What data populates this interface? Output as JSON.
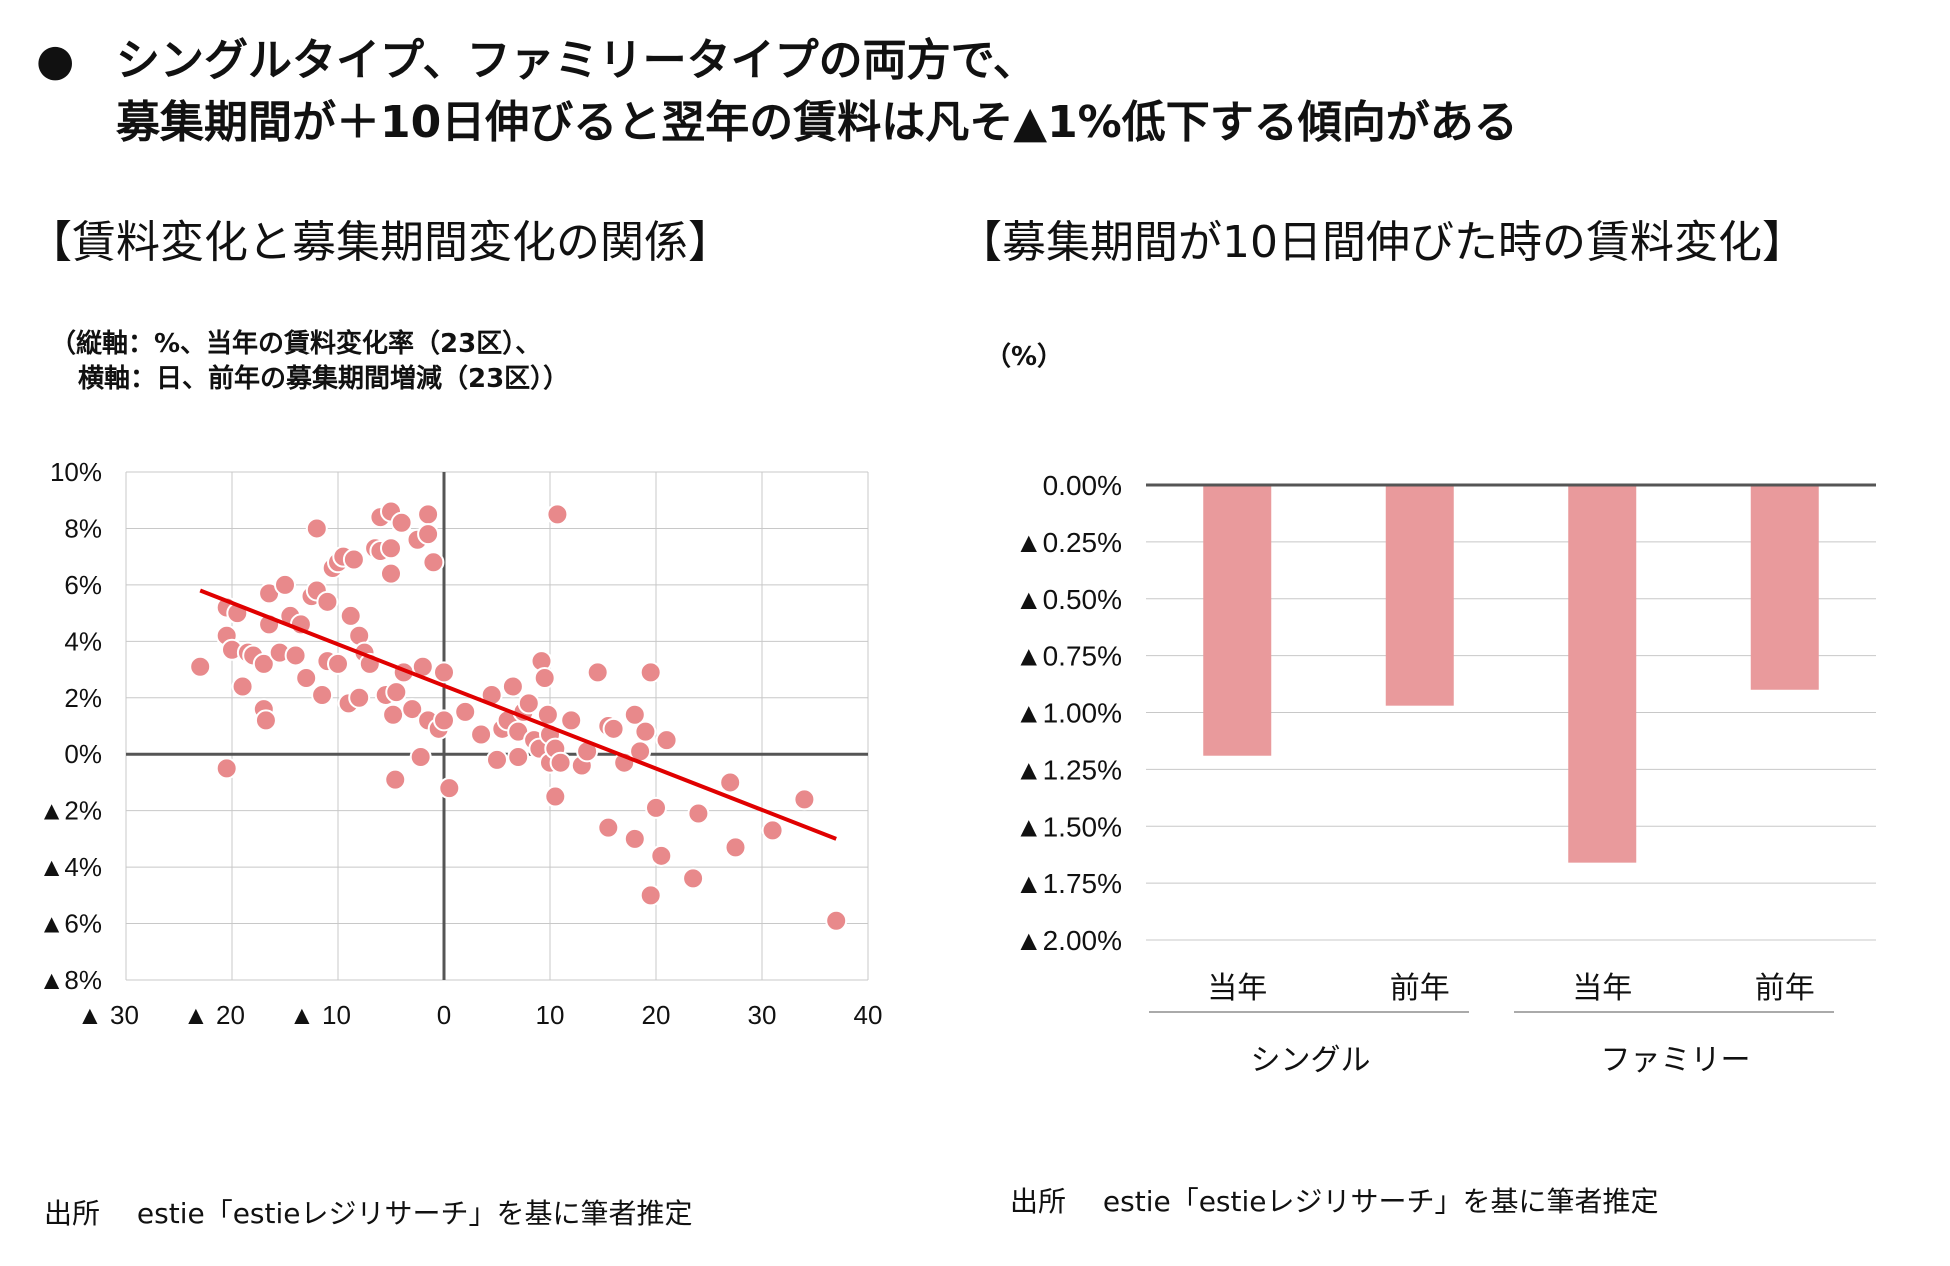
{
  "headline": {
    "bullet": "●",
    "line1": "シングルタイプ、ファミリータイプの両方で、",
    "line2": "募集期間が＋10日伸びると翌年の賃料は凡そ▲1%低下する傾向がある"
  },
  "left_panel": {
    "title": "【賃料変化と募集期間変化の関係】",
    "axis_note_1": "（縦軸：%、当年の賃料変化率（23区）、",
    "axis_note_2": "横軸：日、前年の募集期間増減（23区））",
    "source": "出所　 estie「estieレジリサーチ」を基に筆者推定"
  },
  "right_panel": {
    "title": "【募集期間が10日間伸びた時の賃料変化】",
    "unit": "（%）",
    "source": "出所　 estie「estieレジリサーチ」を基に筆者推定"
  },
  "colors": {
    "marker": "#E8898B",
    "trend": "#E00000",
    "bar": "#E99A9C",
    "axis": "#555555",
    "grid": "#C8C8C8"
  },
  "chart_data": [
    {
      "type": "scatter",
      "title": "賃料変化と募集期間変化の関係",
      "xlabel": "日、前年の募集期間増減（23区）",
      "ylabel": "%、当年の賃料変化率（23区）",
      "xlim": [
        -30,
        40
      ],
      "ylim": [
        -8,
        10
      ],
      "x_ticks": [
        -30,
        -20,
        -10,
        0,
        10,
        20,
        30,
        40
      ],
      "x_tick_labels": [
        "▲ 30",
        "▲ 20",
        "▲ 10",
        "0",
        "10",
        "20",
        "30",
        "40"
      ],
      "y_ticks": [
        10,
        8,
        6,
        4,
        2,
        0,
        -2,
        -4,
        -6,
        -8
      ],
      "y_tick_labels": [
        "10%",
        "8%",
        "6%",
        "4%",
        "2%",
        "0%",
        "▲2%",
        "▲4%",
        "▲6%",
        "▲8%"
      ],
      "trendline": {
        "x": [
          -23,
          37
        ],
        "y": [
          5.8,
          -3.0
        ]
      },
      "points": [
        [
          -23,
          3.1
        ],
        [
          -20.5,
          -0.5
        ],
        [
          -20.5,
          5.2
        ],
        [
          -20.5,
          4.2
        ],
        [
          -20,
          3.7
        ],
        [
          -19.5,
          5.0
        ],
        [
          -19,
          2.4
        ],
        [
          -18.5,
          3.6
        ],
        [
          -18,
          3.5
        ],
        [
          -17,
          3.2
        ],
        [
          -17,
          1.6
        ],
        [
          -16.8,
          1.2
        ],
        [
          -16.5,
          5.7
        ],
        [
          -16.5,
          4.6
        ],
        [
          -15.5,
          3.6
        ],
        [
          -15,
          6.0
        ],
        [
          -14.5,
          4.9
        ],
        [
          -14,
          3.5
        ],
        [
          -13.5,
          4.6
        ],
        [
          -13,
          2.7
        ],
        [
          -12.5,
          5.6
        ],
        [
          -12,
          8.0
        ],
        [
          -12,
          5.8
        ],
        [
          -11.5,
          2.1
        ],
        [
          -11,
          5.4
        ],
        [
          -11,
          3.3
        ],
        [
          -10.5,
          6.6
        ],
        [
          -10,
          6.8
        ],
        [
          -10,
          3.2
        ],
        [
          -9.5,
          7.0
        ],
        [
          -9,
          1.8
        ],
        [
          -8.8,
          4.9
        ],
        [
          -8.5,
          6.9
        ],
        [
          -8,
          4.2
        ],
        [
          -8,
          2.0
        ],
        [
          -7.5,
          3.6
        ],
        [
          -7,
          3.2
        ],
        [
          -6.5,
          7.3
        ],
        [
          -6,
          8.4
        ],
        [
          -6,
          7.2
        ],
        [
          -5.5,
          2.1
        ],
        [
          -5,
          8.6
        ],
        [
          -5,
          6.4
        ],
        [
          -5,
          7.3
        ],
        [
          -4.8,
          1.4
        ],
        [
          -4.6,
          -0.9
        ],
        [
          -4.5,
          2.2
        ],
        [
          -4,
          8.2
        ],
        [
          -3.8,
          2.9
        ],
        [
          -3,
          1.6
        ],
        [
          -2.5,
          7.6
        ],
        [
          -2.2,
          -0.1
        ],
        [
          -2,
          3.1
        ],
        [
          -1.5,
          1.2
        ],
        [
          -1.5,
          8.5
        ],
        [
          -1.5,
          7.8
        ],
        [
          -1,
          6.8
        ],
        [
          -0.5,
          0.9
        ],
        [
          0,
          1.2
        ],
        [
          0,
          2.9
        ],
        [
          0.5,
          -1.2
        ],
        [
          2,
          1.5
        ],
        [
          3.5,
          0.7
        ],
        [
          4.5,
          2.1
        ],
        [
          5,
          -0.2
        ],
        [
          5.5,
          0.9
        ],
        [
          6,
          1.2
        ],
        [
          6.5,
          2.4
        ],
        [
          7,
          -0.1
        ],
        [
          7,
          0.8
        ],
        [
          7.5,
          1.5
        ],
        [
          8,
          1.8
        ],
        [
          8.5,
          0.5
        ],
        [
          9,
          0.2
        ],
        [
          9.2,
          3.3
        ],
        [
          9.5,
          2.7
        ],
        [
          9.8,
          1.4
        ],
        [
          10,
          -0.3
        ],
        [
          10,
          0.7
        ],
        [
          10.5,
          0.2
        ],
        [
          10.5,
          -1.5
        ],
        [
          10.7,
          8.5
        ],
        [
          11,
          -0.3
        ],
        [
          12,
          1.2
        ],
        [
          13,
          -0.4
        ],
        [
          13.5,
          0.1
        ],
        [
          14.5,
          2.9
        ],
        [
          15.5,
          -2.6
        ],
        [
          15.5,
          1.0
        ],
        [
          16,
          0.9
        ],
        [
          17,
          -0.3
        ],
        [
          18,
          1.4
        ],
        [
          18,
          -3.0
        ],
        [
          18.5,
          0.1
        ],
        [
          19,
          0.8
        ],
        [
          19.5,
          2.9
        ],
        [
          19.5,
          -5.0
        ],
        [
          20,
          -1.9
        ],
        [
          20.5,
          -3.6
        ],
        [
          21,
          0.5
        ],
        [
          23.5,
          -4.4
        ],
        [
          24,
          -2.1
        ],
        [
          27,
          -1.0
        ],
        [
          27.5,
          -3.3
        ],
        [
          31,
          -2.7
        ],
        [
          34,
          -1.6
        ],
        [
          37,
          -5.9
        ]
      ]
    },
    {
      "type": "bar",
      "title": "募集期間が10日間伸びた時の賃料変化",
      "unit": "%",
      "groups": [
        "シングル",
        "ファミリー"
      ],
      "categories": [
        "当年",
        "前年",
        "当年",
        "前年"
      ],
      "values": [
        -1.19,
        -0.97,
        -1.66,
        -0.9
      ],
      "ylim": [
        -2.0,
        0.0
      ],
      "y_ticks": [
        0,
        -0.25,
        -0.5,
        -0.75,
        -1.0,
        -1.25,
        -1.5,
        -1.75,
        -2.0
      ],
      "y_tick_labels": [
        "0.00%",
        "▲0.25%",
        "▲0.50%",
        "▲0.75%",
        "▲1.00%",
        "▲1.25%",
        "▲1.50%",
        "▲1.75%",
        "▲2.00%"
      ]
    }
  ]
}
